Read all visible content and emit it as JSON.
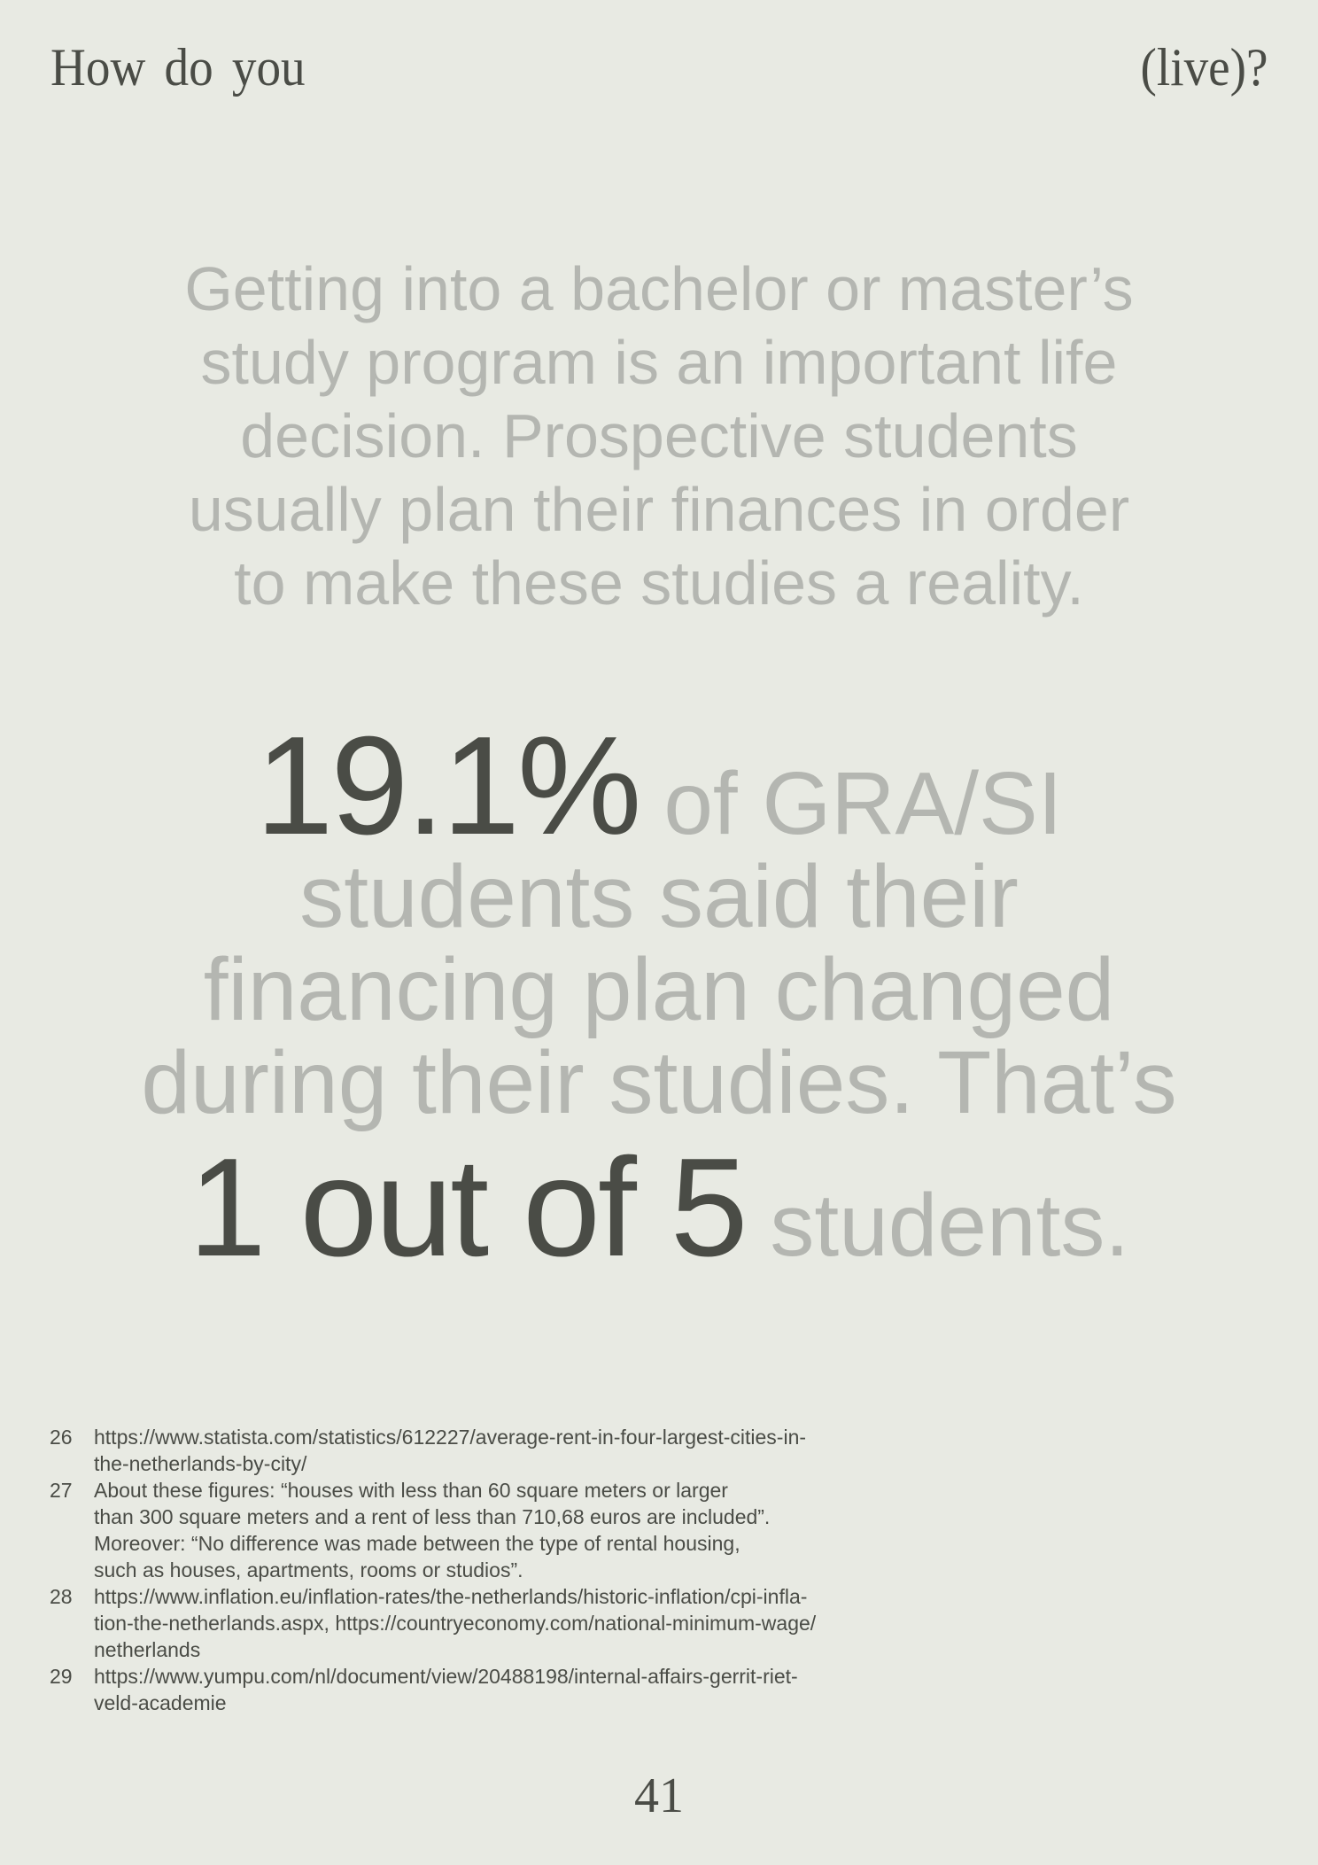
{
  "header": {
    "left": "How do you",
    "right": "(live)?"
  },
  "intro_lines": [
    "Getting into a bachelor or master’s",
    "study program is an important life",
    "decision. Prospective students",
    "usually plan their finances in order",
    "to make these studies a reality."
  ],
  "statement": {
    "percent": "19.1%",
    "line1_rest": " of GRA/SI",
    "line2": "students said their",
    "line3": "financing plan changed",
    "line4": "during their studies. That’s",
    "ratio": "1 out of 5",
    "line5_rest": " students."
  },
  "footnotes": [
    {
      "num": "26",
      "lines": [
        "https://www.statista.com/statistics/612227/average-rent-in-four-largest-cities-in-",
        "the-netherlands-by-city/"
      ]
    },
    {
      "num": "27",
      "lines": [
        "About these figures: “houses with less than 60 square meters or larger",
        "than 300 square meters and a rent of less than 710,68 euros are included”.",
        "Moreover: “No difference was made between the type of rental housing,",
        "such as houses, apartments, rooms or studios”."
      ]
    },
    {
      "num": "28",
      "lines": [
        "https://www.inflation.eu/inflation-rates/the-netherlands/historic-inflation/cpi-infla-",
        "tion-the-netherlands.aspx, https://countryeconomy.com/national-minimum-wage/",
        "netherlands"
      ]
    },
    {
      "num": "29",
      "lines": [
        "https://www.yumpu.com/nl/document/view/20488198/internal-affairs-gerrit-riet-",
        "veld-academie"
      ]
    }
  ],
  "page_number": "41",
  "colors": {
    "background": "#e8eae3",
    "dark_text": "#4a4c46",
    "light_text": "#b4b6b1"
  }
}
